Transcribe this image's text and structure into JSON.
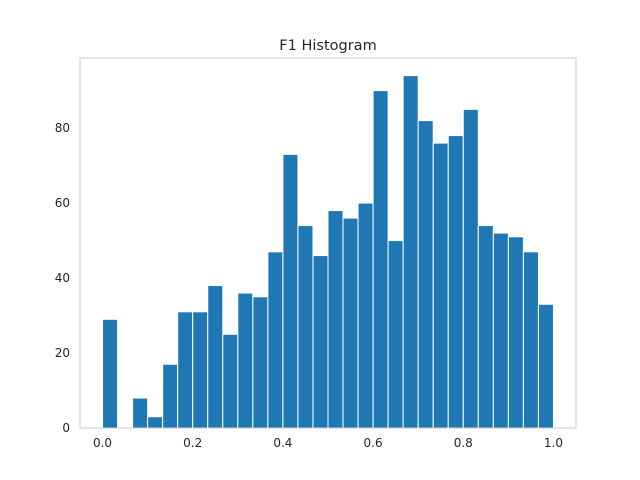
{
  "chart_data": {
    "type": "bar",
    "title": "F1 Histogram",
    "xlabel": "",
    "ylabel": "",
    "xlim": [
      -0.05,
      1.05
    ],
    "ylim": [
      0,
      98.7
    ],
    "bin_width": 0.0333333,
    "bin_start": 0.0,
    "values": [
      29,
      0,
      8,
      3,
      17,
      31,
      31,
      38,
      25,
      36,
      35,
      47,
      73,
      54,
      46,
      58,
      56,
      60,
      90,
      50,
      94,
      82,
      76,
      78,
      85,
      54,
      52,
      51,
      47,
      33
    ],
    "x_ticks": [
      0.0,
      0.2,
      0.4,
      0.6,
      0.8,
      1.0
    ],
    "x_tick_labels": [
      "0.0",
      "0.2",
      "0.4",
      "0.6",
      "0.8",
      "1.0"
    ],
    "y_ticks": [
      0,
      20,
      40,
      60,
      80
    ],
    "y_tick_labels": [
      "0",
      "20",
      "40",
      "60",
      "80"
    ],
    "grid": false,
    "colors": {
      "bar": "#1f77b4",
      "frame": "#cccccc",
      "text": "#262626"
    }
  }
}
